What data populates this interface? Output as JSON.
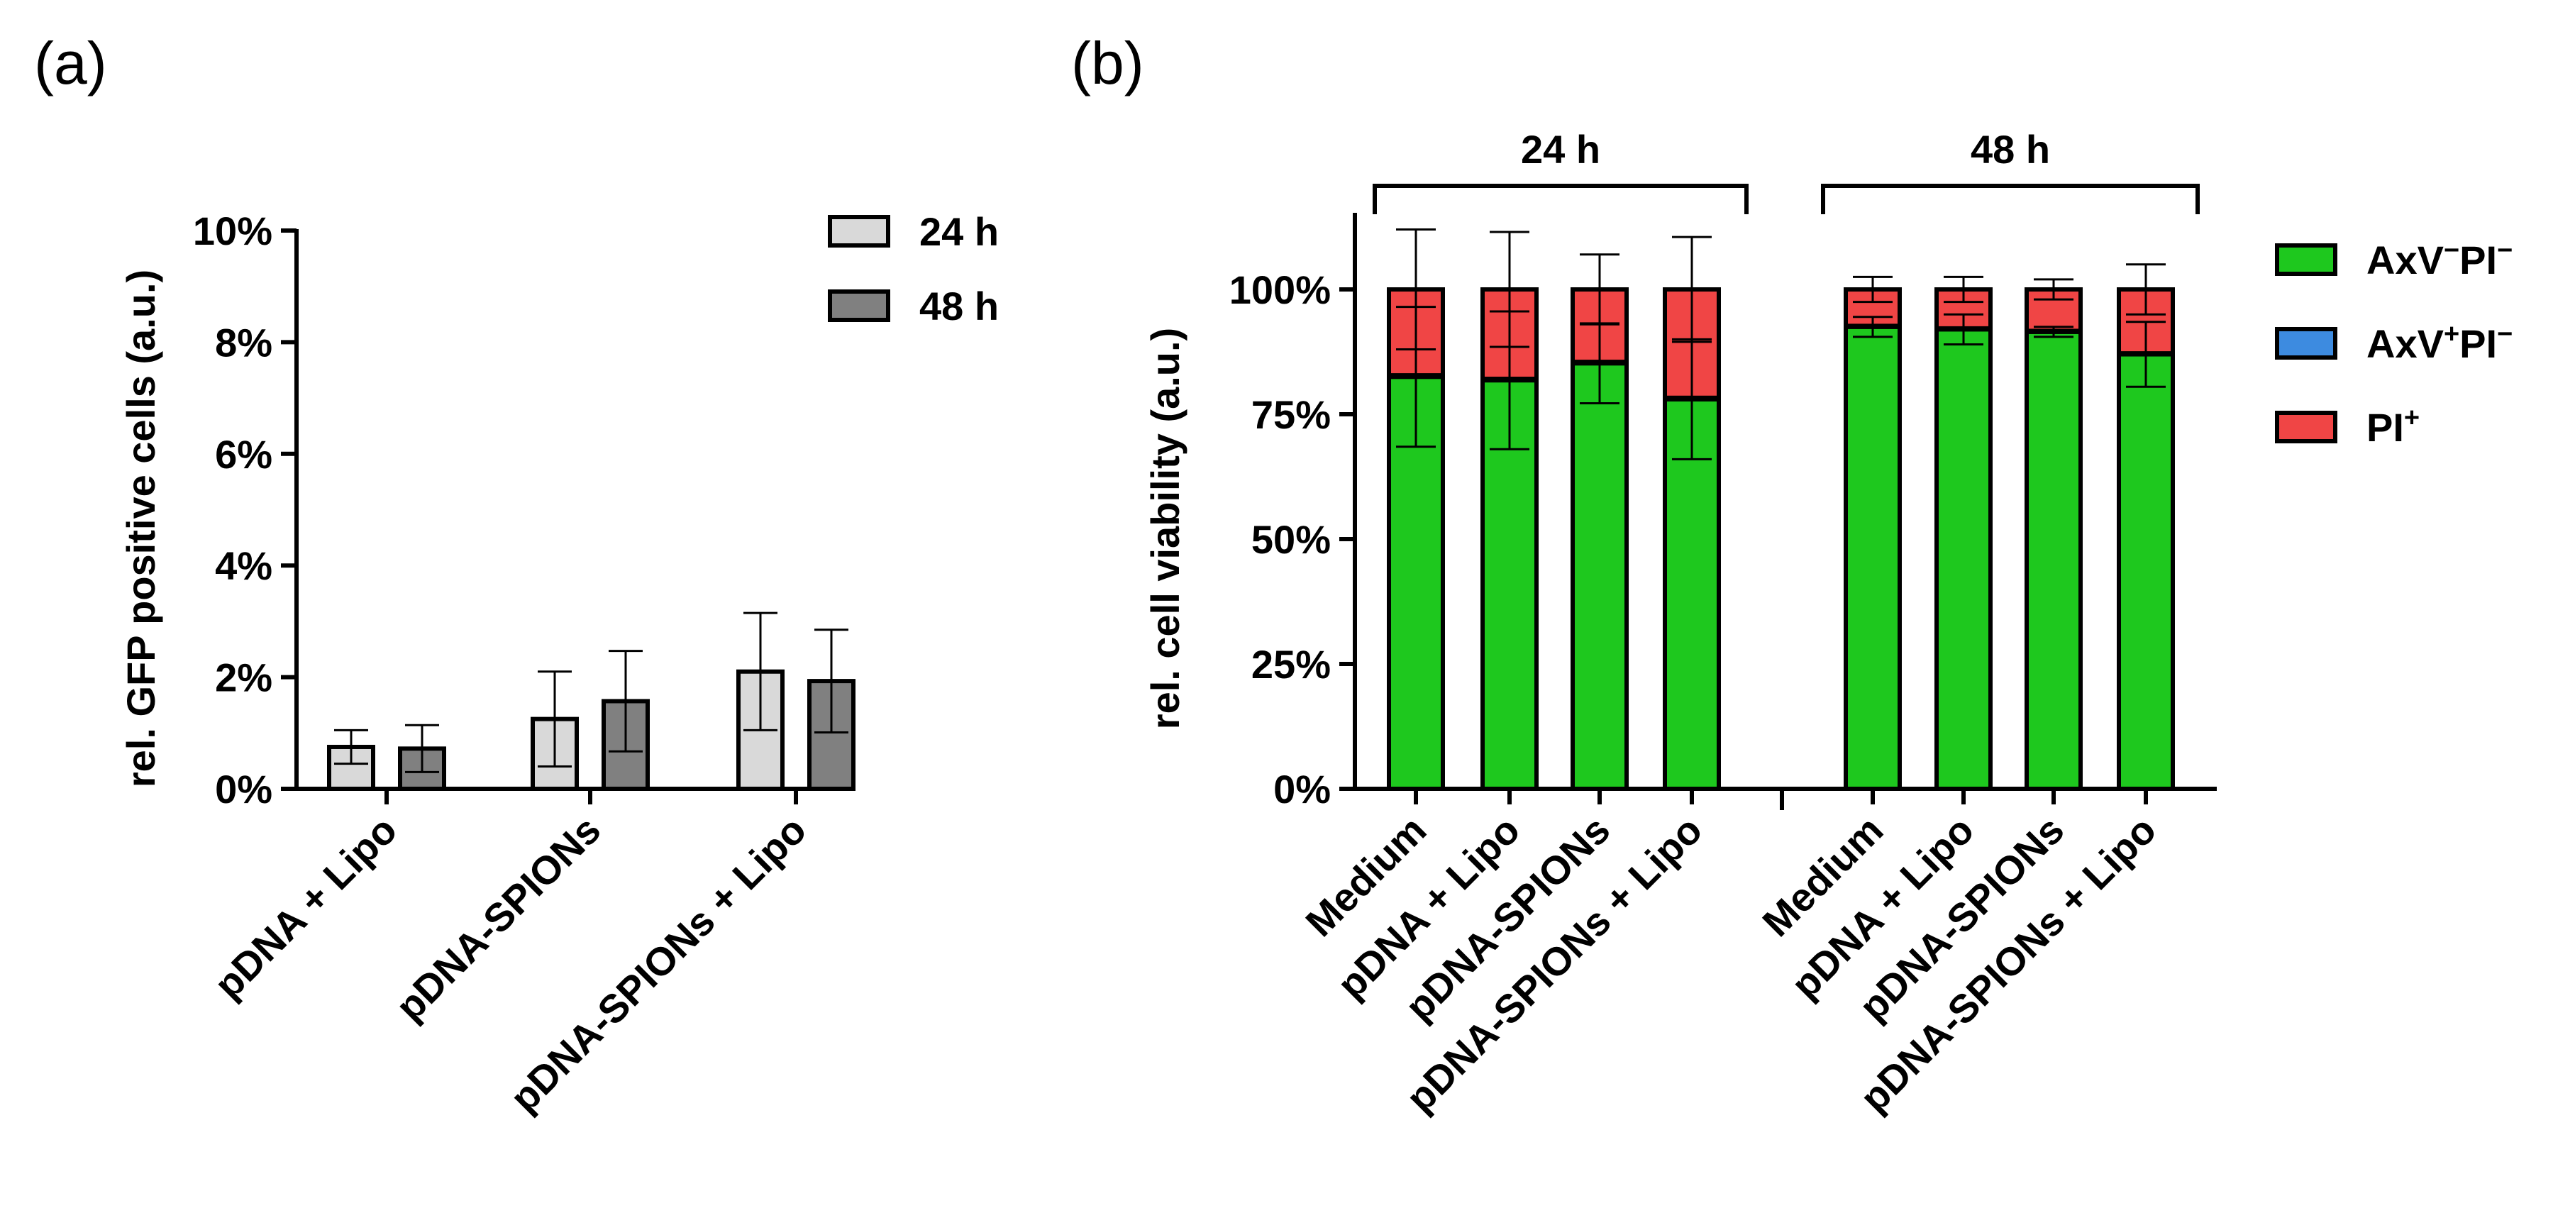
{
  "chart_data": [
    {
      "panel": "(a)",
      "type": "bar",
      "ylabel": "rel. GFP positive cells (a.u.)",
      "xlabel": "",
      "ylim": [
        0,
        10
      ],
      "yticks": [
        0,
        2,
        4,
        6,
        8,
        10
      ],
      "ytick_labels": [
        "0%",
        "2%",
        "4%",
        "6%",
        "8%",
        "10%"
      ],
      "categories": [
        "pDNA + Lipo",
        "pDNA-SPIONs",
        "pDNA-SPIONs + Lipo"
      ],
      "series": [
        {
          "name": "24 h",
          "color": "#d9d9d9",
          "values": [
            0.75,
            1.25,
            2.1
          ],
          "err": [
            0.3,
            0.85,
            1.05
          ]
        },
        {
          "name": "48 h",
          "color": "#808080",
          "values": [
            0.72,
            1.57,
            1.93
          ],
          "err": [
            0.42,
            0.9,
            0.92
          ]
        }
      ],
      "legend_position": "top-right"
    },
    {
      "panel": "(b)",
      "type": "bar",
      "stacked": true,
      "ylabel": "rel. cell viability (a.u.)",
      "xlabel": "",
      "ylim": [
        0,
        100
      ],
      "yticks": [
        0,
        25,
        50,
        75,
        100
      ],
      "ytick_labels": [
        "0%",
        "25%",
        "50%",
        "75%",
        "100%"
      ],
      "groups": [
        {
          "label": "24 h",
          "categories": [
            "Medium",
            "pDNA + Lipo",
            "pDNA-SPIONs",
            "pDNA-SPIONs + Lipo"
          ]
        },
        {
          "label": "48 h",
          "categories": [
            "Medium",
            "pDNA + Lipo",
            "pDNA-SPIONs",
            "pDNA-SPIONs + Lipo"
          ]
        }
      ],
      "series": [
        {
          "name": "AxV⁻PI⁻",
          "color": "#1ec81e",
          "values": [
            82.5,
            81.8,
            85.2,
            78.0,
            92.5,
            92.0,
            91.5,
            87.0
          ],
          "err": [
            14.0,
            13.8,
            8.0,
            12.0,
            2.0,
            3.0,
            1.0,
            6.5
          ]
        },
        {
          "name": "AxV⁺PI⁻",
          "color": "#3d8be0",
          "values": [
            0.3,
            0.3,
            0.3,
            0.3,
            0.2,
            0.2,
            0.2,
            0.2
          ],
          "err": [
            0,
            0,
            0,
            0,
            0,
            0,
            0,
            0
          ]
        },
        {
          "name": "PI⁺",
          "color": "#f04545",
          "values": [
            17.2,
            17.9,
            14.5,
            21.7,
            7.3,
            7.8,
            8.3,
            12.8
          ],
          "err": [
            12.0,
            11.5,
            7.0,
            10.5,
            2.5,
            2.5,
            2.0,
            5.0
          ]
        }
      ],
      "legend_position": "right"
    }
  ]
}
